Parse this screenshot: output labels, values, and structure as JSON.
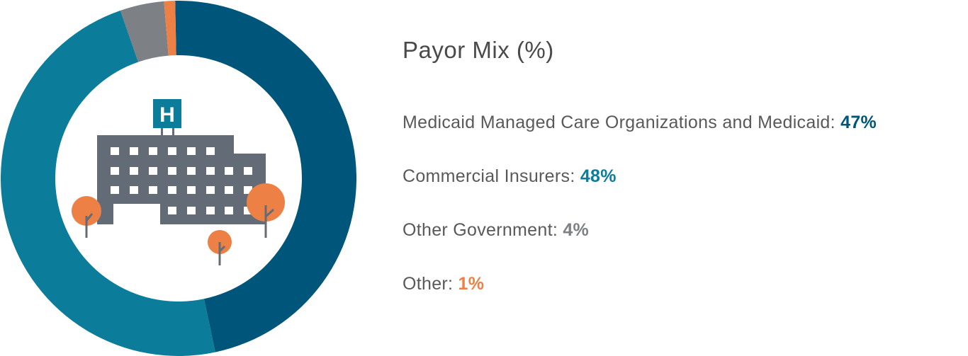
{
  "colors": {
    "medicaid": "#00567a",
    "commercial": "#0b7c9a",
    "other_government": "#7d8085",
    "other": "#ed8045",
    "building": "#636c76",
    "sign_text": "#ffffff"
  },
  "icons": [
    "hospital-building-icon",
    "tree-icon"
  ],
  "hospital_sign": "H",
  "chart_data": {
    "type": "pie",
    "title": "Payor Mix (%)",
    "donut": true,
    "categories": [
      "Medicaid Managed Care Organizations and Medicaid",
      "Commercial Insurers",
      "Other Government",
      "Other"
    ],
    "values": [
      47,
      48,
      4,
      1
    ],
    "value_labels": [
      "47%",
      "48%",
      "4%",
      "1%"
    ],
    "legend_placement": "right"
  }
}
